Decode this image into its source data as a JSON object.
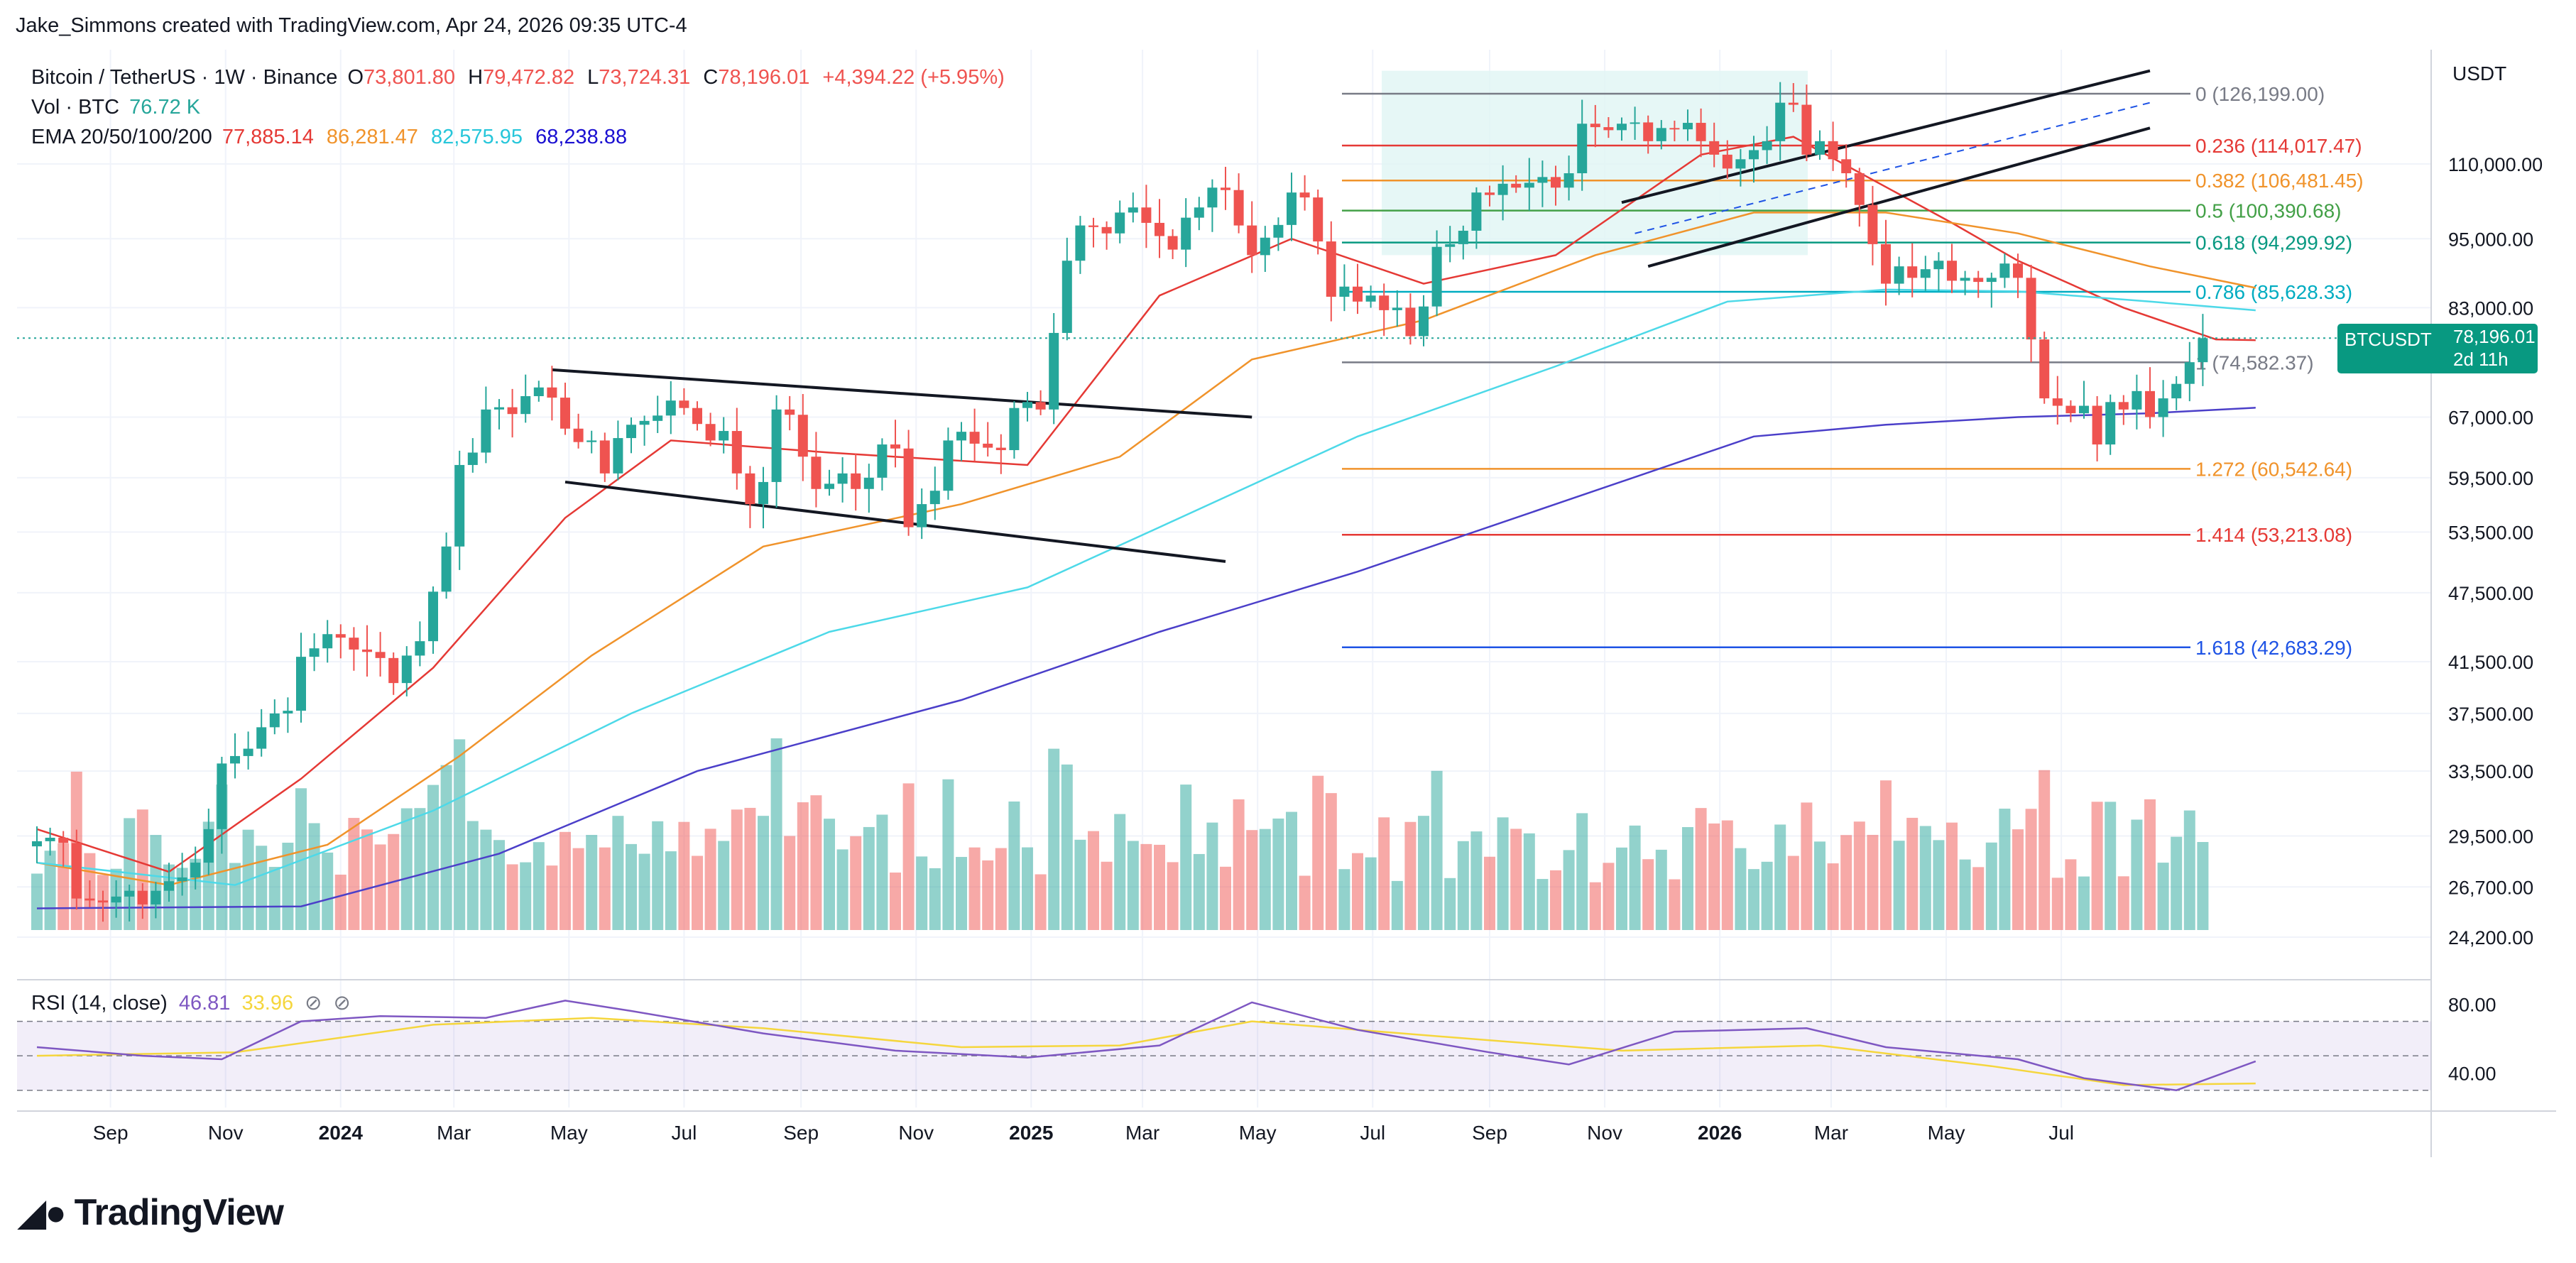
{
  "header": {
    "credit": "Jake_Simmons created with TradingView.com, Apr 24, 2026 09:35 UTC-4"
  },
  "legend": {
    "symbol": "Bitcoin / TetherUS · 1W · Binance",
    "o_label": "O",
    "o": "73,801.80",
    "h_label": "H",
    "h": "79,472.82",
    "l_label": "L",
    "l": "73,724.31",
    "c_label": "C",
    "c": "78,196.01",
    "change": "+4,394.22 (+5.95%)",
    "vol_label": "Vol · BTC",
    "vol": "76.72 K",
    "ema_label": "EMA 20/50/100/200",
    "ema20": "77,885.14",
    "ema50": "86,281.47",
    "ema100": "82,575.95",
    "ema200": "68,238.88",
    "rsi_label": "RSI (14, close)",
    "rsi": "46.81",
    "rsi_ma": "33.96"
  },
  "price_scale_unit": "USDT",
  "brand": "TradingView",
  "colors": {
    "up": "#26a69a",
    "down": "#ef5350",
    "ema20": "#e53935",
    "ema50": "#f0932b",
    "ema100": "#4dd9e8",
    "ema200": "#4b3fc9",
    "rsi": "#7e57c2",
    "rsi_ma": "#f5d63d",
    "fib_box": "#e0f5f4"
  },
  "price_tag": {
    "label": "BTCUSDT",
    "price": "78,196.01",
    "countdown": "2d 11h"
  },
  "chart_data": {
    "type": "candlestick",
    "timeframe": "1W",
    "x_start": "2023-07-24",
    "x_end": "2026-04-20",
    "y_axis_scale": "log",
    "y_ticks": [
      {
        "value": 110000,
        "label": "110,000.00"
      },
      {
        "value": 95000,
        "label": "95,000.00"
      },
      {
        "value": 83000,
        "label": "83,000.00"
      },
      {
        "value": 67000,
        "label": "67,000.00"
      },
      {
        "value": 59500,
        "label": "59,500.00"
      },
      {
        "value": 53500,
        "label": "53,500.00"
      },
      {
        "value": 47500,
        "label": "47,500.00"
      },
      {
        "value": 41500,
        "label": "41,500.00"
      },
      {
        "value": 37500,
        "label": "37,500.00"
      },
      {
        "value": 33500,
        "label": "33,500.00"
      },
      {
        "value": 29500,
        "label": "29,500.00"
      },
      {
        "value": 26700,
        "label": "26,700.00"
      },
      {
        "value": 24200,
        "label": "24,200.00"
      }
    ],
    "x_ticks": [
      {
        "date": "2023-09-01",
        "label": "Sep",
        "bold": false
      },
      {
        "date": "2023-11-01",
        "label": "Nov",
        "bold": false
      },
      {
        "date": "2024-01-01",
        "label": "2024",
        "bold": true
      },
      {
        "date": "2024-03-01",
        "label": "Mar",
        "bold": false
      },
      {
        "date": "2024-05-01",
        "label": "May",
        "bold": false
      },
      {
        "date": "2024-07-01",
        "label": "Jul",
        "bold": false
      },
      {
        "date": "2024-09-01",
        "label": "Sep",
        "bold": false
      },
      {
        "date": "2024-11-01",
        "label": "Nov",
        "bold": false
      },
      {
        "date": "2025-01-01",
        "label": "2025",
        "bold": true
      },
      {
        "date": "2025-03-01",
        "label": "Mar",
        "bold": false
      },
      {
        "date": "2025-05-01",
        "label": "May",
        "bold": false
      },
      {
        "date": "2025-07-01",
        "label": "Jul",
        "bold": false
      },
      {
        "date": "2025-09-01",
        "label": "Sep",
        "bold": false
      },
      {
        "date": "2025-11-01",
        "label": "Nov",
        "bold": false
      },
      {
        "date": "2026-01-01",
        "label": "2026",
        "bold": true
      },
      {
        "date": "2026-03-01",
        "label": "Mar",
        "bold": false
      },
      {
        "date": "2026-05-01",
        "label": "May",
        "bold": false
      },
      {
        "date": "2026-07-01",
        "label": "Jul",
        "bold": false
      }
    ],
    "closes": [
      29200,
      29400,
      29100,
      26100,
      26000,
      25900,
      26200,
      26500,
      25800,
      26500,
      27000,
      27200,
      28000,
      29900,
      34000,
      34500,
      35000,
      36500,
      37500,
      37700,
      41900,
      42600,
      43800,
      43500,
      42500,
      42300,
      41800,
      39800,
      42000,
      43200,
      47600,
      52000,
      61000,
      62500,
      68000,
      68300,
      67400,
      69800,
      71000,
      69600,
      65500,
      63800,
      64000,
      60000,
      64300,
      66000,
      66500,
      67200,
      69200,
      68200,
      66100,
      64000,
      65200,
      60000,
      56500,
      59000,
      68000,
      67300,
      62000,
      58200,
      58800,
      60000,
      58200,
      59500,
      63500,
      63000,
      54000,
      56500,
      58000,
      64000,
      65100,
      63600,
      63100,
      62800,
      68200,
      69000,
      68000,
      79000,
      91000,
      97500,
      97200,
      96000,
      100000,
      101000,
      98000,
      95500,
      93000,
      99000,
      101000,
      105000,
      104500,
      97500,
      92000,
      95200,
      97600,
      104000,
      103000,
      94500,
      84800,
      86500,
      84000,
      85000,
      82600,
      83000,
      78500,
      83200,
      93500,
      94000,
      96500,
      104000,
      103500,
      105800,
      105000,
      106000,
      107200,
      105000,
      108000,
      119000,
      118200,
      117500,
      119000,
      119300,
      115000,
      118000,
      117700,
      119200,
      115000,
      112000,
      109000,
      111000,
      113000,
      115000,
      124000,
      123500,
      112000,
      115000,
      111000,
      108000,
      101500,
      94000,
      87000,
      90000,
      88000,
      89500,
      91000,
      87500,
      88000,
      87300,
      88000,
      90500,
      88000,
      78000,
      69500,
      68500,
      67500,
      68500,
      63500,
      69000,
      68000,
      70500,
      67000,
      69500,
      71500,
      74600,
      78196
    ],
    "emas": [
      {
        "name": "EMA 20",
        "color": "#e53935",
        "points": [
          [
            0,
            29900
          ],
          [
            10,
            27500
          ],
          [
            20,
            33000
          ],
          [
            30,
            41000
          ],
          [
            40,
            55000
          ],
          [
            48,
            64000
          ],
          [
            60,
            62500
          ],
          [
            75,
            61000
          ],
          [
            85,
            85000
          ],
          [
            95,
            95000
          ],
          [
            105,
            87000
          ],
          [
            115,
            92000
          ],
          [
            126,
            112000
          ],
          [
            133,
            116000
          ],
          [
            145,
            98000
          ],
          [
            150,
            91000
          ],
          [
            158,
            83000
          ],
          [
            165,
            78000
          ],
          [
            168,
            77885
          ]
        ]
      },
      {
        "name": "EMA 50",
        "color": "#f0932b",
        "points": [
          [
            0,
            28000
          ],
          [
            10,
            26800
          ],
          [
            22,
            29000
          ],
          [
            32,
            34500
          ],
          [
            42,
            42000
          ],
          [
            55,
            52000
          ],
          [
            70,
            56500
          ],
          [
            82,
            62000
          ],
          [
            92,
            75000
          ],
          [
            105,
            81000
          ],
          [
            118,
            92000
          ],
          [
            130,
            100000
          ],
          [
            140,
            100000
          ],
          [
            150,
            96000
          ],
          [
            160,
            90000
          ],
          [
            168,
            86281
          ]
        ]
      },
      {
        "name": "EMA 100",
        "color": "#4dd9e8",
        "points": [
          [
            0,
            28000
          ],
          [
            15,
            26800
          ],
          [
            30,
            31000
          ],
          [
            45,
            37500
          ],
          [
            60,
            44000
          ],
          [
            75,
            48000
          ],
          [
            85,
            54000
          ],
          [
            100,
            64500
          ],
          [
            115,
            74000
          ],
          [
            128,
            84000
          ],
          [
            140,
            86000
          ],
          [
            150,
            85700
          ],
          [
            160,
            84000
          ],
          [
            168,
            82576
          ]
        ]
      },
      {
        "name": "EMA 200",
        "color": "#4b3fc9",
        "points": [
          [
            0,
            25600
          ],
          [
            20,
            25700
          ],
          [
            35,
            28500
          ],
          [
            50,
            33500
          ],
          [
            70,
            38500
          ],
          [
            85,
            44000
          ],
          [
            100,
            49500
          ],
          [
            115,
            56500
          ],
          [
            130,
            64500
          ],
          [
            140,
            66000
          ],
          [
            150,
            67000
          ],
          [
            160,
            67500
          ],
          [
            168,
            68239
          ]
        ]
      }
    ],
    "fib_levels": [
      {
        "ratio": "0",
        "value": 126199,
        "text": "0 (126,199.00)",
        "color": "#787b86"
      },
      {
        "ratio": "0.236",
        "value": 114017.47,
        "text": "0.236 (114,017.47)",
        "color": "#e53935"
      },
      {
        "ratio": "0.382",
        "value": 106481.45,
        "text": "0.382 (106,481.45)",
        "color": "#f0932b"
      },
      {
        "ratio": "0.5",
        "value": 100390.68,
        "text": "0.5 (100,390.68)",
        "color": "#43a047"
      },
      {
        "ratio": "0.618",
        "value": 94299.92,
        "text": "0.618 (94,299.92)",
        "color": "#089981"
      },
      {
        "ratio": "0.786",
        "value": 85628.33,
        "text": "0.786 (85,628.33)",
        "color": "#00acc1"
      },
      {
        "ratio": "1",
        "value": 74582.37,
        "text": "1 (74,582.37)",
        "color": "#787b86"
      },
      {
        "ratio": "1.272",
        "value": 60542.64,
        "text": "1.272 (60,542.64)",
        "color": "#f0932b"
      },
      {
        "ratio": "1.414",
        "value": 53213.08,
        "text": "1.414 (53,213.08)",
        "color": "#e53935"
      },
      {
        "ratio": "1.618",
        "value": 42683.29,
        "text": "1.618 (42,683.29)",
        "color": "#1e53e5"
      }
    ],
    "fib_start_week": 116,
    "trendlines": [
      {
        "name": "triangle-upper",
        "from": [
          39,
          73500
        ],
        "to": [
          92,
          67000
        ]
      },
      {
        "name": "triangle-lower",
        "from": [
          40,
          59000
        ],
        "to": [
          90,
          50500
        ]
      },
      {
        "name": "channel-upper",
        "from": [
          120,
          102000
        ],
        "to": [
          160,
          132000
        ]
      },
      {
        "name": "channel-lower",
        "from": [
          122,
          90000
        ],
        "to": [
          160,
          118000
        ]
      }
    ],
    "rsi_ticks": [
      {
        "value": 80,
        "label": "80.00"
      },
      {
        "value": 40,
        "label": "40.00"
      }
    ],
    "rsi_band": [
      70,
      30
    ],
    "rsi_points": [
      [
        0,
        55
      ],
      [
        8,
        50
      ],
      [
        14,
        48
      ],
      [
        20,
        70
      ],
      [
        26,
        73
      ],
      [
        34,
        72
      ],
      [
        40,
        82
      ],
      [
        45,
        76
      ],
      [
        55,
        63
      ],
      [
        65,
        53
      ],
      [
        75,
        49
      ],
      [
        85,
        56
      ],
      [
        92,
        81
      ],
      [
        100,
        65
      ],
      [
        110,
        52
      ],
      [
        116,
        45
      ],
      [
        124,
        64
      ],
      [
        134,
        66
      ],
      [
        140,
        55
      ],
      [
        150,
        48
      ],
      [
        155,
        37
      ],
      [
        162,
        30
      ],
      [
        168,
        46.81
      ]
    ],
    "rsi_ma_points": [
      [
        0,
        50
      ],
      [
        15,
        52
      ],
      [
        30,
        68
      ],
      [
        42,
        72
      ],
      [
        55,
        66
      ],
      [
        70,
        55
      ],
      [
        82,
        56
      ],
      [
        92,
        70
      ],
      [
        105,
        62
      ],
      [
        120,
        53
      ],
      [
        135,
        56
      ],
      [
        148,
        44
      ],
      [
        158,
        33
      ],
      [
        168,
        33.96
      ]
    ]
  }
}
